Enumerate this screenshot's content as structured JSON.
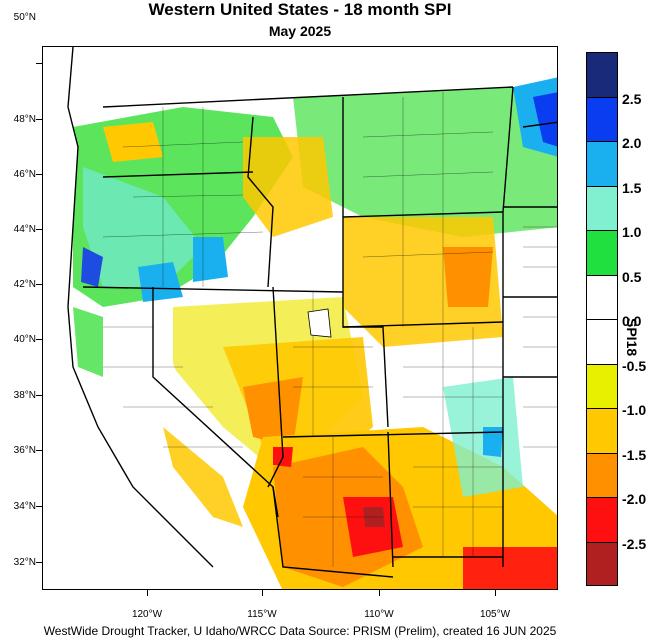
{
  "header": {
    "title": "Western United States - 18 month SPI",
    "subtitle": "May 2025"
  },
  "map": {
    "lat_labels": [
      "50°N",
      "48°N",
      "46°N",
      "44°N",
      "42°N",
      "40°N",
      "38°N",
      "36°N",
      "34°N",
      "32°N"
    ],
    "lon_labels": [
      "120°W",
      "115°W",
      "110°W",
      "105°W"
    ]
  },
  "legend": {
    "title": "SPI18",
    "labels": [
      "2.5",
      "2.0",
      "1.5",
      "1.0",
      "0.5",
      "0.0",
      "-0.5",
      "-1.0",
      "-1.5",
      "-2.0",
      "-2.5"
    ],
    "colors": [
      "#1a2a7a",
      "#0a3cf0",
      "#1ab0f0",
      "#80f0d0",
      "#20e040",
      "#ffffff",
      "#ffffff",
      "#e8f000",
      "#ffc800",
      "#ff9000",
      "#ff1010",
      "#b02020"
    ]
  },
  "footer": {
    "credit": "WestWide Drought Tracker, U Idaho/WRCC Data Source: PRISM (Prelim), created 16 JUN 2025"
  }
}
